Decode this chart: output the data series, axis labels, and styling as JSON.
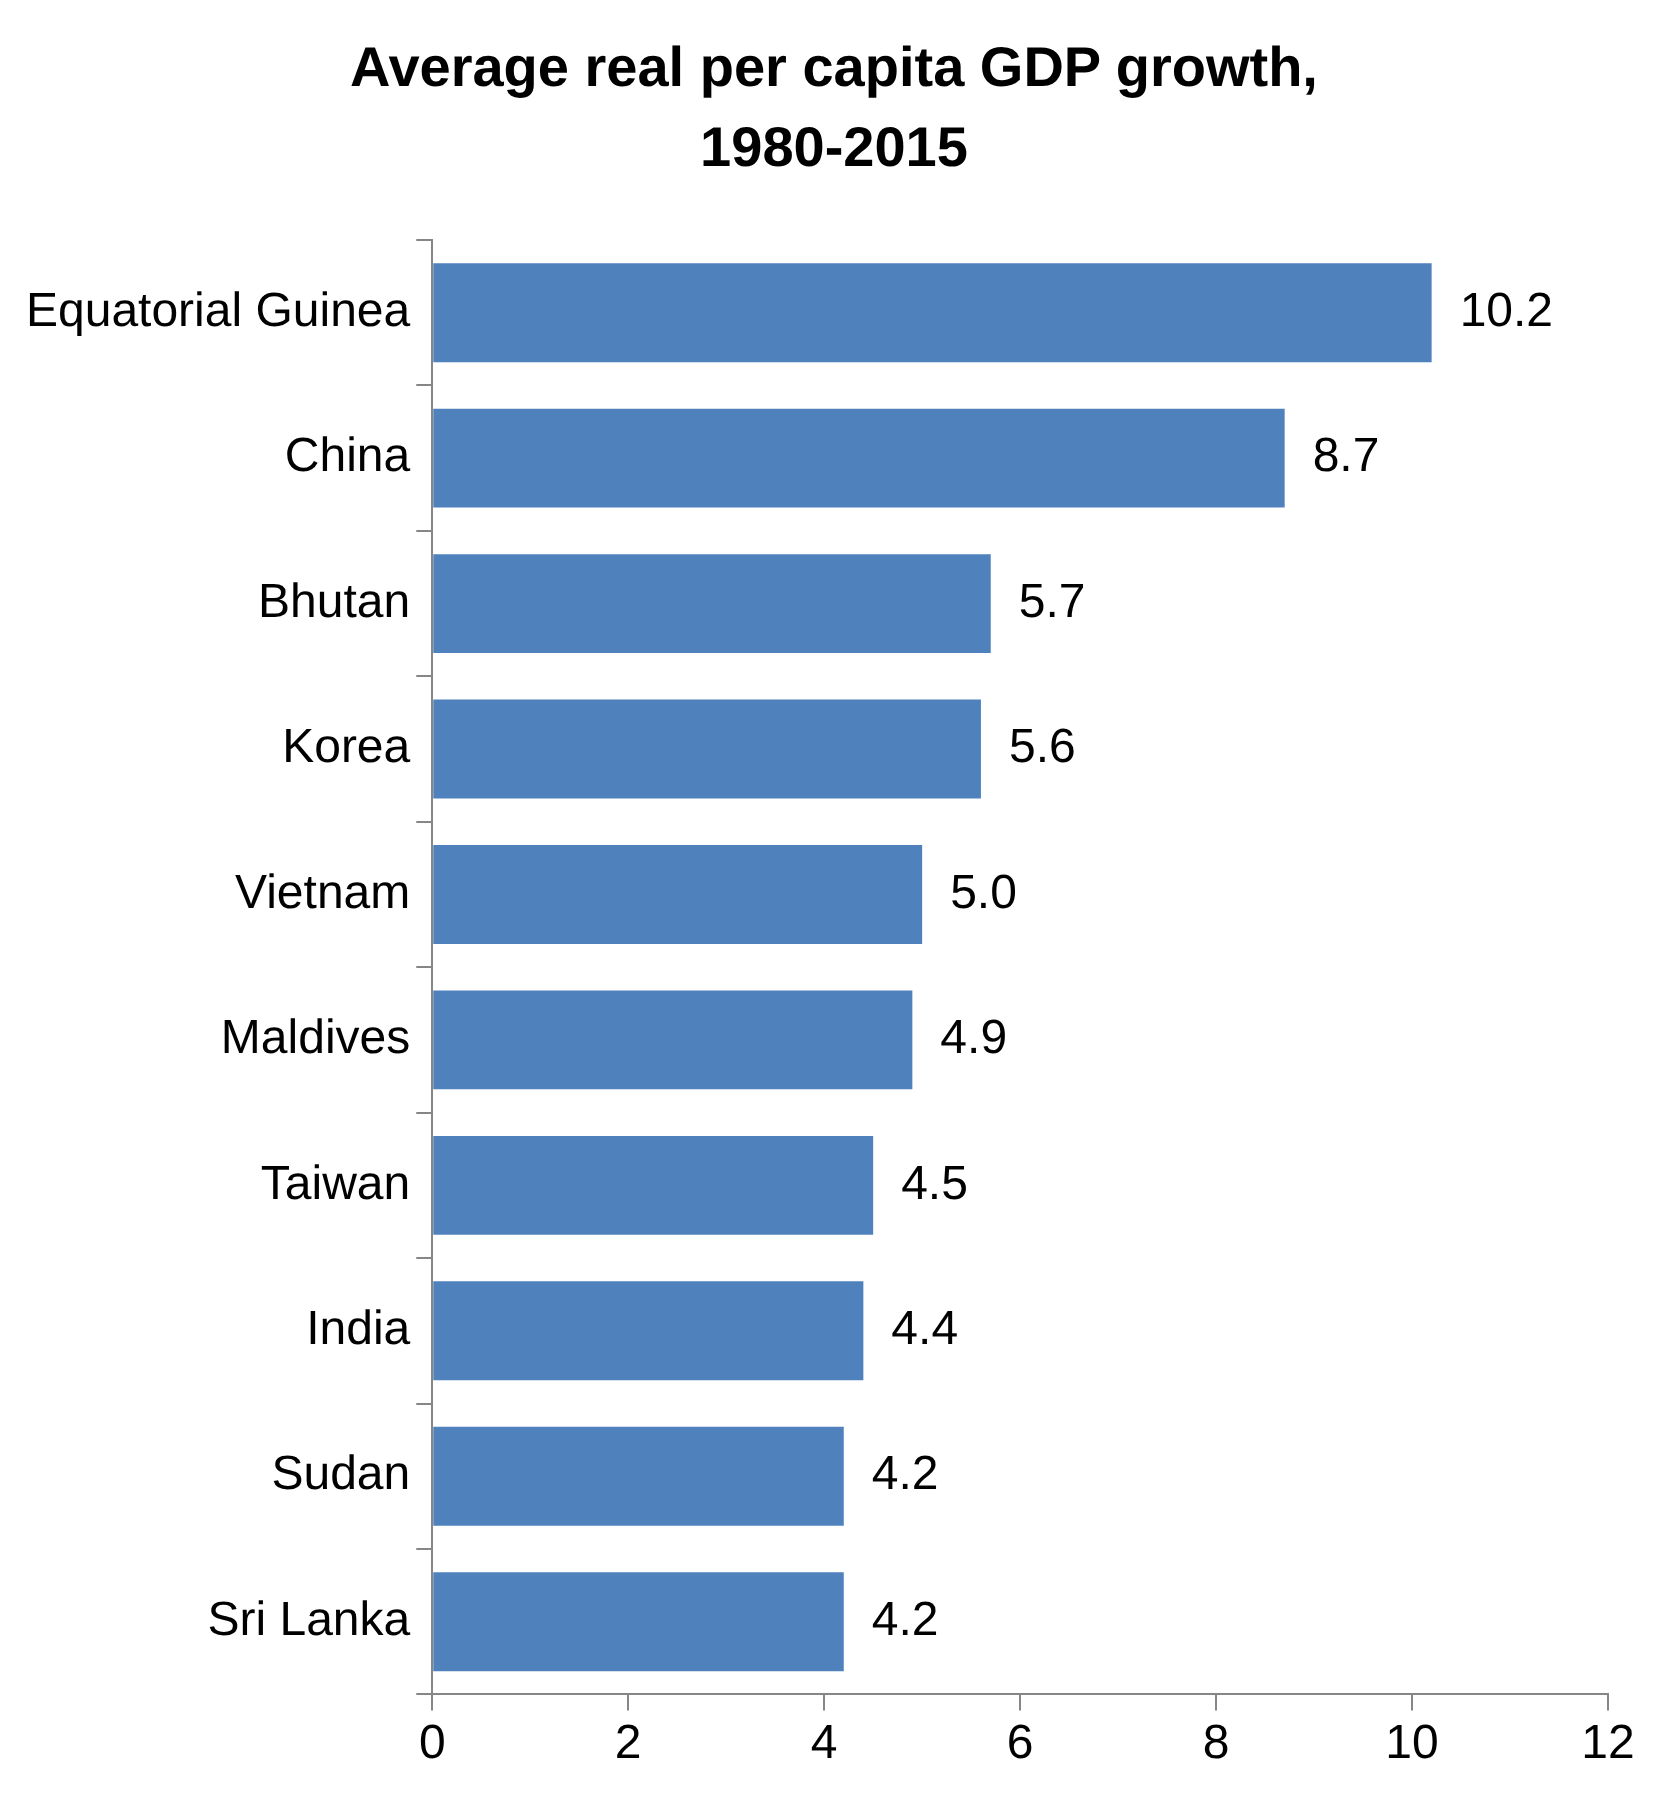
{
  "chart_data": {
    "type": "bar",
    "orientation": "horizontal",
    "title": "Average real per capita GDP growth, 1980-2015",
    "categories": [
      "Equatorial Guinea",
      "China",
      "Bhutan",
      "Korea",
      "Vietnam",
      "Maldives",
      "Taiwan",
      "India",
      "Sudan",
      "Sri Lanka"
    ],
    "values": [
      10.2,
      8.7,
      5.7,
      5.6,
      5.0,
      4.9,
      4.5,
      4.4,
      4.2,
      4.2
    ],
    "value_labels": [
      "10.2",
      "8.7",
      "5.7",
      "5.6",
      "5.0",
      "4.9",
      "4.5",
      "4.4",
      "4.2",
      "4.2"
    ],
    "color": "#4f81bd",
    "xlim": [
      0,
      12
    ],
    "xticks": [
      0,
      2,
      4,
      6,
      8,
      10,
      12
    ],
    "grid": false,
    "legend": false
  }
}
